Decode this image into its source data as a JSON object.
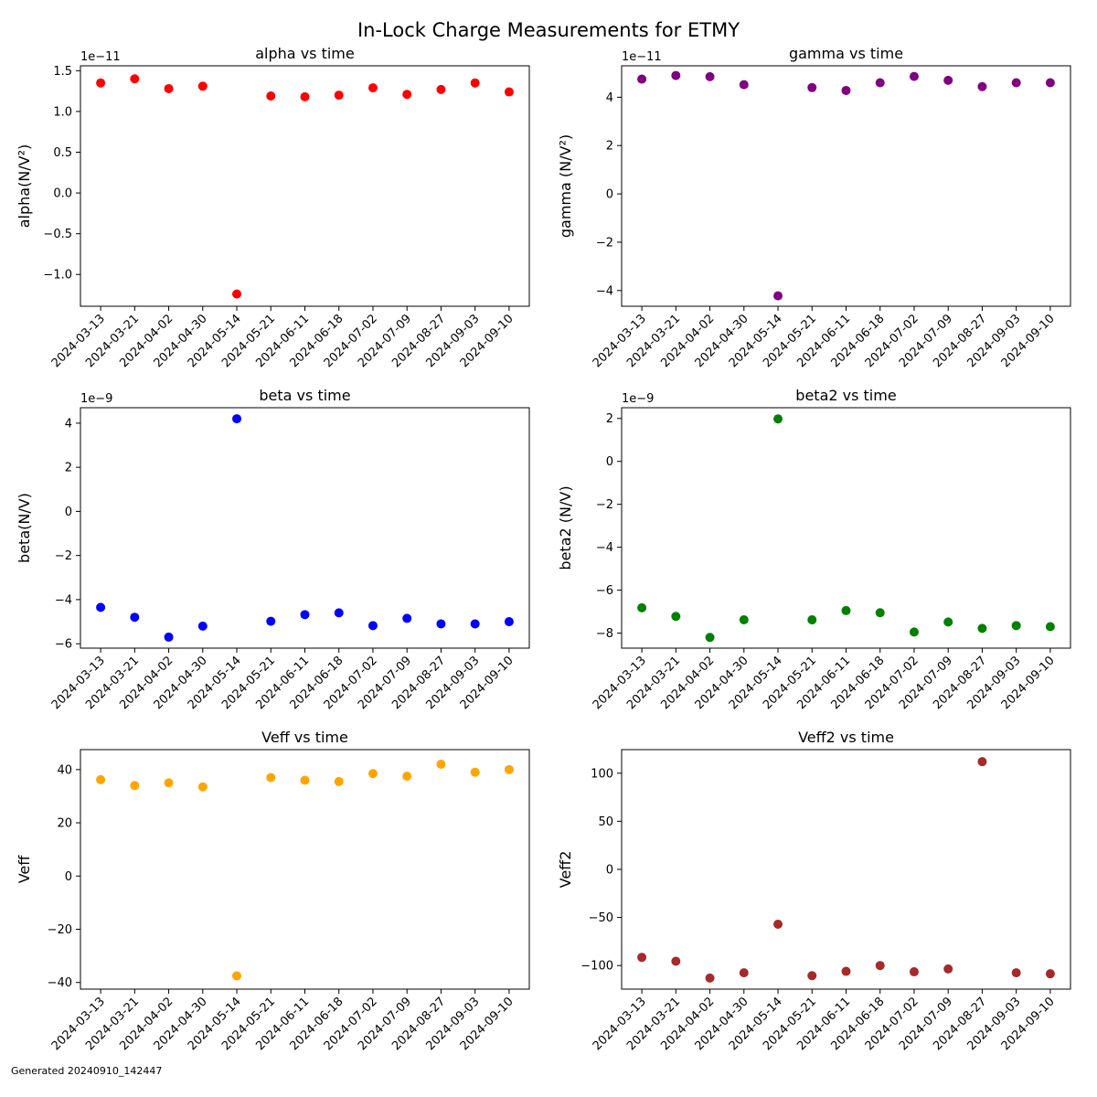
{
  "figure": {
    "suptitle": "In-Lock Charge Measurements for ETMY",
    "footer": "Generated 20240910_142447"
  },
  "chart_data": [
    {
      "type": "scatter",
      "title": "alpha vs time",
      "ylabel": "alpha(N/V²)",
      "offset_text": "1e−11",
      "color": "#ff0000",
      "x": [
        "2024-03-13",
        "2024-03-21",
        "2024-04-02",
        "2024-04-30",
        "2024-05-14",
        "2024-05-21",
        "2024-06-11",
        "2024-06-18",
        "2024-07-02",
        "2024-07-09",
        "2024-08-27",
        "2024-09-03",
        "2024-09-10"
      ],
      "y": [
        1.35e-11,
        1.4e-11,
        1.28e-11,
        1.31e-11,
        -1.24e-11,
        1.19e-11,
        1.18e-11,
        1.2e-11,
        1.29e-11,
        1.21e-11,
        1.27e-11,
        1.35e-11,
        1.24e-11
      ],
      "ylim": [
        -1.39e-11,
        1.56e-11
      ],
      "yticks": [
        -1e-11,
        -5e-12,
        0,
        5e-12,
        1e-11,
        1.5e-11
      ],
      "yticklabels": [
        "−1.0",
        "−0.5",
        "0.0",
        "0.5",
        "1.0",
        "1.5"
      ]
    },
    {
      "type": "scatter",
      "title": "gamma vs time",
      "ylabel": "gamma (N/V²)",
      "offset_text": "1e−11",
      "color": "#800080",
      "x": [
        "2024-03-13",
        "2024-03-21",
        "2024-04-02",
        "2024-04-30",
        "2024-05-14",
        "2024-05-21",
        "2024-06-11",
        "2024-06-18",
        "2024-07-02",
        "2024-07-09",
        "2024-08-27",
        "2024-09-03",
        "2024-09-10"
      ],
      "y": [
        4.75e-11,
        4.9e-11,
        4.85e-11,
        4.52e-11,
        -4.22e-11,
        4.4e-11,
        4.28e-11,
        4.6e-11,
        4.86e-11,
        4.7e-11,
        4.44e-11,
        4.6e-11,
        4.6e-11
      ],
      "ylim": [
        -4.65e-11,
        5.3e-11
      ],
      "yticks": [
        -4e-11,
        -2e-11,
        0,
        2e-11,
        4e-11
      ],
      "yticklabels": [
        "−4",
        "−2",
        "0",
        "2",
        "4"
      ]
    },
    {
      "type": "scatter",
      "title": "beta vs time",
      "ylabel": "beta(N/V)",
      "offset_text": "1e−9",
      "color": "#0000ff",
      "x": [
        "2024-03-13",
        "2024-03-21",
        "2024-04-02",
        "2024-04-30",
        "2024-05-14",
        "2024-05-21",
        "2024-06-11",
        "2024-06-18",
        "2024-07-02",
        "2024-07-09",
        "2024-08-27",
        "2024-09-03",
        "2024-09-10"
      ],
      "y": [
        -4.35e-09,
        -4.8e-09,
        -5.7e-09,
        -5.2e-09,
        4.2e-09,
        -4.98e-09,
        -4.68e-09,
        -4.6e-09,
        -5.18e-09,
        -4.85e-09,
        -5.1e-09,
        -5.1e-09,
        -5e-09
      ],
      "ylim": [
        -6.2e-09,
        4.7e-09
      ],
      "yticks": [
        -6e-09,
        -4e-09,
        -2e-09,
        0,
        2e-09,
        4e-09
      ],
      "yticklabels": [
        "−6",
        "−4",
        "−2",
        "0",
        "2",
        "4"
      ]
    },
    {
      "type": "scatter",
      "title": "beta2 vs time",
      "ylabel": "beta2 (N/V)",
      "offset_text": "1e−9",
      "color": "#008000",
      "x": [
        "2024-03-13",
        "2024-03-21",
        "2024-04-02",
        "2024-04-30",
        "2024-05-14",
        "2024-05-21",
        "2024-06-11",
        "2024-06-18",
        "2024-07-02",
        "2024-07-09",
        "2024-08-27",
        "2024-09-03",
        "2024-09-10"
      ],
      "y": [
        -6.82e-09,
        -7.22e-09,
        -8.2e-09,
        -7.38e-09,
        1.98e-09,
        -7.38e-09,
        -6.95e-09,
        -7.05e-09,
        -7.95e-09,
        -7.48e-09,
        -7.78e-09,
        -7.65e-09,
        -7.7e-09
      ],
      "ylim": [
        -8.7e-09,
        2.5e-09
      ],
      "yticks": [
        -8e-09,
        -6e-09,
        -4e-09,
        -2e-09,
        0,
        2e-09
      ],
      "yticklabels": [
        "−8",
        "−6",
        "−4",
        "−2",
        "0",
        "2"
      ]
    },
    {
      "type": "scatter",
      "title": "Veff vs time",
      "ylabel": "Veff",
      "offset_text": "",
      "color": "#ffa500",
      "x": [
        "2024-03-13",
        "2024-03-21",
        "2024-04-02",
        "2024-04-30",
        "2024-05-14",
        "2024-05-21",
        "2024-06-11",
        "2024-06-18",
        "2024-07-02",
        "2024-07-09",
        "2024-08-27",
        "2024-09-03",
        "2024-09-10"
      ],
      "y": [
        36.2,
        34.0,
        35.0,
        33.5,
        -37.5,
        37.0,
        36.0,
        35.5,
        38.5,
        37.5,
        42.0,
        39.0,
        40.0
      ],
      "ylim": [
        -42.5,
        47.5
      ],
      "yticks": [
        -40,
        -20,
        0,
        20,
        40
      ],
      "yticklabels": [
        "−40",
        "−20",
        "0",
        "20",
        "40"
      ]
    },
    {
      "type": "scatter",
      "title": "Veff2 vs time",
      "ylabel": "Veff2",
      "offset_text": "",
      "color": "#a52a2a",
      "x": [
        "2024-03-13",
        "2024-03-21",
        "2024-04-02",
        "2024-04-30",
        "2024-05-14",
        "2024-05-21",
        "2024-06-11",
        "2024-06-18",
        "2024-07-02",
        "2024-07-09",
        "2024-08-27",
        "2024-09-03",
        "2024-09-10"
      ],
      "y": [
        -91.5,
        -95.5,
        -113.0,
        -107.5,
        -57.0,
        -110.5,
        -106.0,
        -100.0,
        -106.5,
        -103.5,
        112.0,
        -107.5,
        -108.5
      ],
      "ylim": [
        -124.5,
        124.5
      ],
      "yticks": [
        -100,
        -50,
        0,
        50,
        100
      ],
      "yticklabels": [
        "−100",
        "−50",
        "0",
        "50",
        "100"
      ]
    }
  ]
}
